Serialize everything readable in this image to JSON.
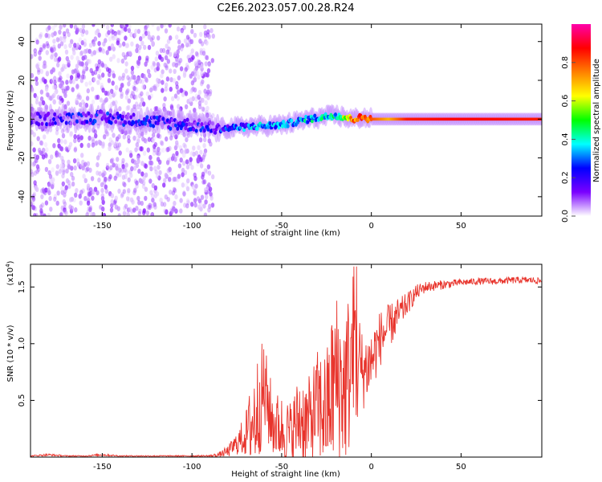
{
  "figure": {
    "title": "C2E6.2023.057.00.28.R24"
  },
  "chart_data": [
    {
      "type": "heatmap",
      "xlabel": "Height of straight line (km)",
      "ylabel": "Frequency (Hz)",
      "xlim": [
        -190,
        95
      ],
      "ylim": [
        -50,
        49
      ],
      "x_ticks": [
        "-150",
        "-100",
        "-50",
        "0",
        "50"
      ],
      "x_tick_values": [
        -150,
        -100,
        -50,
        0,
        50
      ],
      "y_ticks": [
        "-40",
        "-20",
        "0",
        "20",
        "40"
      ],
      "y_tick_values": [
        -40,
        -20,
        0,
        20,
        40
      ],
      "colorbar": {
        "label": "Normalized spectral amplitude",
        "range": [
          0,
          1
        ],
        "ticks": [
          "0.0",
          "0.2",
          "0.4",
          "0.6",
          "0.8"
        ],
        "tick_values": [
          0,
          0.2,
          0.4,
          0.6,
          0.8
        ],
        "colormap": [
          "#ffffff",
          "#7a00ff",
          "#0000ff",
          "#00ffff",
          "#00ff00",
          "#ffff00",
          "#ff8000",
          "#ff0000",
          "#ff00aa"
        ]
      },
      "noise_region": {
        "x_range": [
          -190,
          -88
        ],
        "freq_range": [
          -50,
          49
        ],
        "amplitude_range": [
          0.02,
          0.12
        ]
      },
      "signal_track": [
        {
          "x": -190,
          "freq": 0,
          "amp": 0.12
        },
        {
          "x": -150,
          "freq": 1,
          "amp": 0.18
        },
        {
          "x": -100,
          "freq": -3,
          "amp": 0.15
        },
        {
          "x": -85,
          "freq": -5,
          "amp": 0.2
        },
        {
          "x": -70,
          "freq": -4,
          "amp": 0.28
        },
        {
          "x": -50,
          "freq": -3,
          "amp": 0.3
        },
        {
          "x": -35,
          "freq": 0,
          "amp": 0.33
        },
        {
          "x": -20,
          "freq": 2,
          "amp": 0.4
        },
        {
          "x": -10,
          "freq": 0,
          "amp": 0.75
        },
        {
          "x": -5,
          "freq": 1,
          "amp": 0.82
        },
        {
          "x": 0,
          "freq": 0,
          "amp": 0.8
        },
        {
          "x": 10,
          "freq": 0,
          "amp": 0.7
        },
        {
          "x": 20,
          "freq": 0,
          "amp": 0.85
        },
        {
          "x": 50,
          "freq": 0,
          "amp": 0.88
        },
        {
          "x": 95,
          "freq": 0,
          "amp": 0.85
        }
      ]
    },
    {
      "type": "line",
      "xlabel": "Height of straight line (km)",
      "ylabel": "SNR (10 * v/v)",
      "y_multiplier": "(x10",
      "y_multiplier_exp": "4",
      "y_multiplier_close": ")",
      "xlim": [
        -190,
        95
      ],
      "ylim": [
        0,
        1.7
      ],
      "x_ticks": [
        "-150",
        "-100",
        "-50",
        "0",
        "50"
      ],
      "x_tick_values": [
        -150,
        -100,
        -50,
        0,
        50
      ],
      "y_ticks": [
        "0.5",
        "1.0",
        "1.5"
      ],
      "y_tick_values": [
        0.5,
        1.0,
        1.5
      ],
      "series": [
        {
          "color": "#e8342c",
          "x": [
            -190,
            -180,
            -170,
            -160,
            -150,
            -140,
            -130,
            -120,
            -110,
            -100,
            -90,
            -85,
            -80,
            -75,
            -70,
            -65,
            -60,
            -55,
            -50,
            -45,
            -40,
            -35,
            -30,
            -25,
            -20,
            -15,
            -10,
            -5,
            0,
            5,
            10,
            15,
            20,
            25,
            30,
            40,
            50,
            60,
            70,
            80,
            90,
            95
          ],
          "y": [
            0.01,
            0.02,
            0.01,
            0.01,
            0.02,
            0.01,
            0.01,
            0.01,
            0.01,
            0.01,
            0.01,
            0.02,
            0.05,
            0.12,
            0.2,
            0.35,
            0.6,
            0.3,
            0.25,
            0.2,
            0.35,
            0.3,
            0.45,
            0.4,
            0.7,
            0.6,
            0.9,
            0.75,
            0.85,
            1.05,
            1.15,
            1.25,
            1.35,
            1.45,
            1.5,
            1.52,
            1.54,
            1.55,
            1.55,
            1.56,
            1.56,
            1.55
          ],
          "spike_amplitude": [
            0.005,
            0.01,
            0.005,
            0.005,
            0.01,
            0.005,
            0.005,
            0.005,
            0.005,
            0.005,
            0.01,
            0.02,
            0.05,
            0.1,
            0.2,
            0.5,
            0.45,
            0.3,
            0.3,
            0.3,
            0.4,
            0.4,
            0.5,
            0.55,
            0.8,
            0.7,
            0.8,
            0.35,
            0.3,
            0.25,
            0.2,
            0.15,
            0.1,
            0.07,
            0.05,
            0.04,
            0.03,
            0.03,
            0.03,
            0.03,
            0.03,
            0.03
          ]
        }
      ]
    }
  ]
}
